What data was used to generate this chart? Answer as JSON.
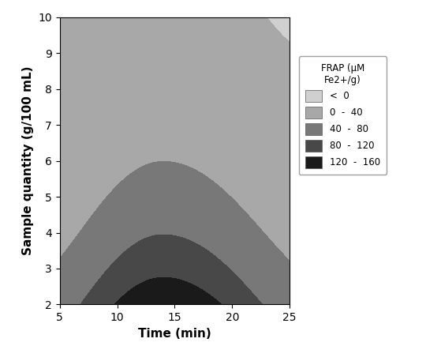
{
  "xlabel": "Time (min)",
  "ylabel": "Sample quantity (g/100 mL)",
  "xlim": [
    5,
    25
  ],
  "ylim": [
    2,
    10
  ],
  "xticks": [
    5,
    10,
    15,
    20,
    25
  ],
  "yticks": [
    2,
    3,
    4,
    5,
    6,
    7,
    8,
    9,
    10
  ],
  "legend_title": "FRAP (μM\nFe2+/g)",
  "legend_labels": [
    "<  0",
    "0  -  40",
    "40  -  80",
    "80  -  120",
    "120  -  160"
  ],
  "legend_colors": [
    "#d0d0d0",
    "#a8a8a8",
    "#787878",
    "#484848",
    "#1a1a1a"
  ],
  "contour_levels": [
    -10,
    0,
    40,
    80,
    120,
    160
  ],
  "contour_colors": [
    "#d0d0d0",
    "#a8a8a8",
    "#787878",
    "#484848",
    "#1a1a1a"
  ]
}
